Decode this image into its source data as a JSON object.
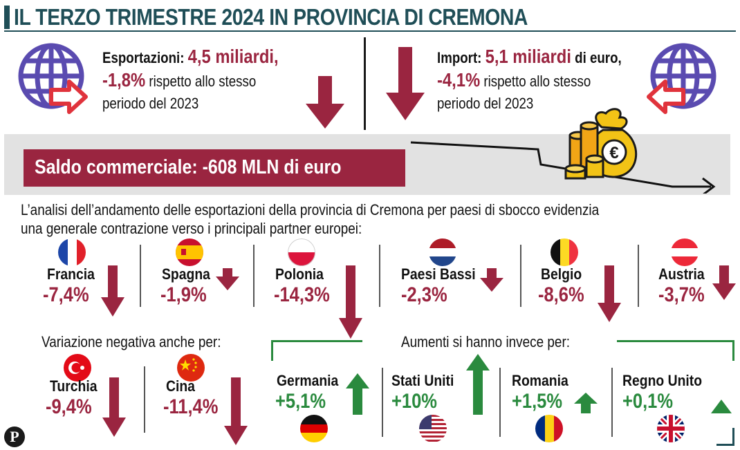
{
  "title": "IL TERZO TRIMESTRE 2024 IN PROVINCIA DI CREMONA",
  "colors": {
    "accent": "#9a2540",
    "positive": "#2a8a3e",
    "title": "#1f4e57",
    "band": "#e2e2e2",
    "globe": "#5a4bb0"
  },
  "exports": {
    "label": "Esportazioni:",
    "amount": "4,5 miliardi,",
    "change": "-1,8%",
    "tail": "rispetto allo stesso",
    "line3": "periodo del  2023"
  },
  "imports": {
    "label": "Import:",
    "amount": "5,1 miliardi",
    "unit": "di euro,",
    "change": "-4,1%",
    "tail": "rispetto allo stesso",
    "line3": "periodo del  2023"
  },
  "saldo": "Saldo commerciale: -608 MLN di euro",
  "intro": {
    "line1": "L’analisi dell’andamento delle esportazioni della provincia di Cremona per paesi di sbocco evidenzia",
    "line2": "una generale contrazione verso i principali partner europei:"
  },
  "europe": [
    {
      "name": "Francia",
      "value": "-7,4%",
      "flag": "france-flag-icon"
    },
    {
      "name": "Spagna",
      "value": "-1,9%",
      "flag": "spain-flag-icon"
    },
    {
      "name": "Polonia",
      "value": "-14,3%",
      "flag": "poland-flag-icon"
    },
    {
      "name": "Paesi Bassi",
      "value": "-2,3%",
      "flag": "netherlands-flag-icon"
    },
    {
      "name": "Belgio",
      "value": "-8,6%",
      "flag": "belgium-flag-icon"
    },
    {
      "name": "Austria",
      "value": "-3,7%",
      "flag": "austria-flag-icon"
    }
  ],
  "negative_label": "Variazione negativa anche per:",
  "negative": [
    {
      "name": "Turchia",
      "value": "-9,4%",
      "flag": "turkey-flag-icon"
    },
    {
      "name": "Cina",
      "value": "-11,4%",
      "flag": "china-flag-icon"
    }
  ],
  "positive_label": "Aumenti si hanno invece per:",
  "positive": [
    {
      "name": "Germania",
      "value": "+5,1%",
      "flag": "germany-flag-icon"
    },
    {
      "name": "Stati Uniti",
      "value": "+10%",
      "flag": "usa-flag-icon"
    },
    {
      "name": "Romania",
      "value": "+1,5%",
      "flag": "romania-flag-icon"
    },
    {
      "name": "Regno Unito",
      "value": "+0,1%",
      "flag": "uk-flag-icon"
    }
  ],
  "logo": "P"
}
